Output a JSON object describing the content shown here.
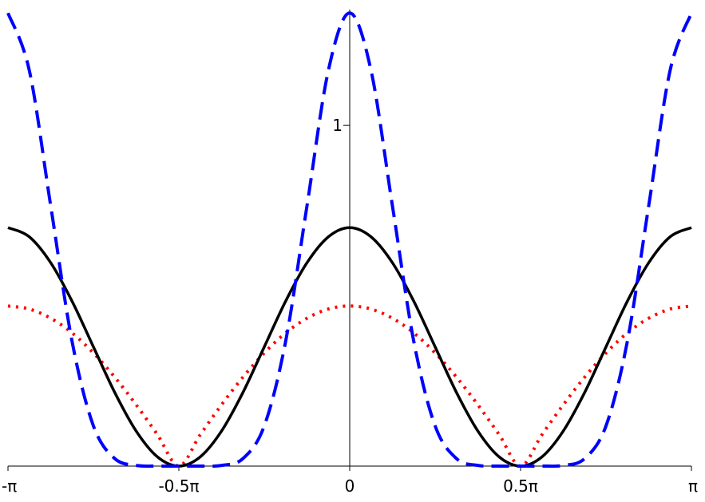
{
  "chart_data": {
    "type": "line",
    "x": [
      -1,
      -0.9375,
      -0.875,
      -0.8125,
      -0.75,
      -0.6875,
      -0.625,
      -0.5625,
      -0.5,
      -0.4375,
      -0.375,
      -0.3125,
      -0.25,
      -0.1875,
      -0.125,
      -0.0625,
      0,
      0.0625,
      0.125,
      0.1875,
      0.25,
      0.3125,
      0.375,
      0.4375,
      0.5,
      0.5625,
      0.625,
      0.6875,
      0.75,
      0.8125,
      0.875,
      0.9375,
      1
    ],
    "series": [
      {
        "color": "#ff0000",
        "style": "dotted",
        "values": [
          0.47,
          0.461,
          0.434,
          0.391,
          0.332,
          0.261,
          0.18,
          0.092,
          0,
          0.092,
          0.18,
          0.261,
          0.332,
          0.391,
          0.434,
          0.461,
          0.47,
          0.461,
          0.434,
          0.391,
          0.332,
          0.261,
          0.18,
          0.092,
          0,
          0.092,
          0.18,
          0.261,
          0.332,
          0.391,
          0.434,
          0.461,
          0.47
        ]
      },
      {
        "color": "#000000",
        "style": "solid",
        "values": [
          0.7,
          0.673,
          0.597,
          0.484,
          0.35,
          0.216,
          0.103,
          0.027,
          0,
          0.027,
          0.103,
          0.216,
          0.35,
          0.484,
          0.597,
          0.673,
          0.7,
          0.673,
          0.597,
          0.484,
          0.35,
          0.216,
          0.103,
          0.027,
          0,
          0.027,
          0.103,
          0.216,
          0.35,
          0.484,
          0.597,
          0.673,
          0.7
        ]
      },
      {
        "color": "#0000ff",
        "style": "dashed",
        "values": [
          1.33,
          1.161,
          0.764,
          0.366,
          0.118,
          0.022,
          0.002,
          0,
          0,
          0,
          0.002,
          0.022,
          0.118,
          0.366,
          0.764,
          1.161,
          1.33,
          1.161,
          0.764,
          0.366,
          0.118,
          0.022,
          0.002,
          0,
          0,
          0,
          0.002,
          0.022,
          0.118,
          0.366,
          0.764,
          1.161,
          1.33
        ]
      }
    ],
    "xlim": [
      -1,
      1
    ],
    "xticks": [
      {
        "value": -1,
        "label": "-π"
      },
      {
        "value": -0.5,
        "label": "-0.5π"
      },
      0,
      {
        "value": 0.5,
        "label": "0.5π"
      },
      {
        "value": 1,
        "label": "π"
      }
    ],
    "ylim": [
      0,
      1.34
    ],
    "yticks": [
      1
    ]
  }
}
